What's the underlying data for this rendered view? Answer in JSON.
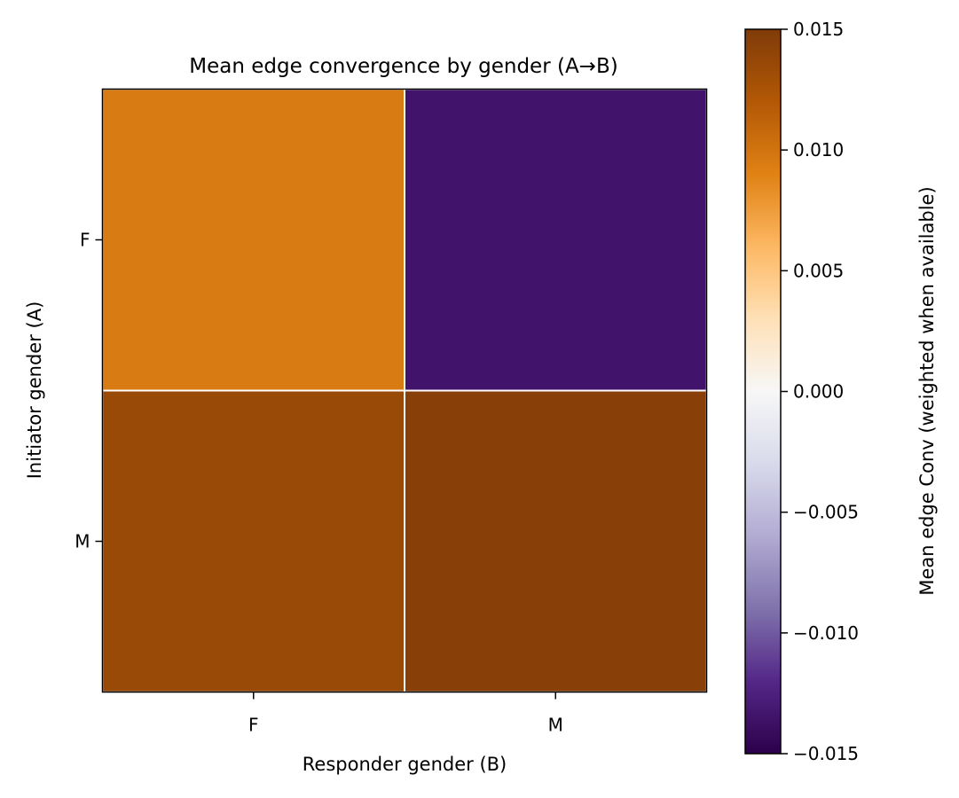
{
  "chart_data": {
    "type": "heatmap",
    "title": "Mean edge convergence by gender (A→B)",
    "xlabel": "Responder gender (B)",
    "ylabel": "Initiator gender (A)",
    "x_categories": [
      "F",
      "M"
    ],
    "y_categories": [
      "F",
      "M"
    ],
    "values": [
      [
        0.0095,
        -0.0135
      ],
      [
        0.0135,
        0.0145
      ]
    ],
    "colorbar": {
      "label": "Mean edge Conv (weighted when available)",
      "vmin": -0.015,
      "vmax": 0.015,
      "ticks": [
        0.015,
        0.01,
        0.005,
        0.0,
        -0.005,
        -0.01,
        -0.015
      ],
      "tick_labels": [
        "0.015",
        "0.010",
        "0.005",
        "0.000",
        "−0.005",
        "−0.010",
        "−0.015"
      ],
      "colormap": "PuOr_r",
      "color_stops": [
        "#2d004b",
        "#542788",
        "#8073ac",
        "#b2abd2",
        "#d8daeb",
        "#f7f7f7",
        "#fee0b6",
        "#fdb863",
        "#e08214",
        "#b35806",
        "#7f3b08"
      ]
    },
    "grid": false,
    "cell_border_color": "#ffffff"
  }
}
